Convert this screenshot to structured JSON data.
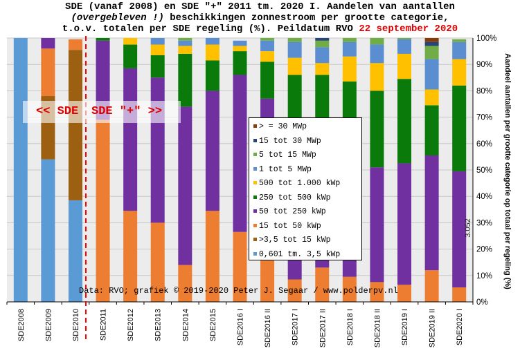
{
  "title": {
    "line1": "SDE (vanaf 2008) en SDE \"+\" 2011 tm. 2020 I. Aandelen van aantallen",
    "line2_italic": "(overgebleven !)",
    "line2_rest": " beschikkingen  zonnestroom per grootte categorie,",
    "line3_main": "t.o.v. totalen per SDE regeling (%). Peildatum RVO ",
    "line3_date": "22 september 2020"
  },
  "annotation": {
    "sde_left": "<< SDE",
    "sde_right": "SDE \"+\" >>",
    "source": "Data: RVO; grafiek © 2019-2020 Peter J. Segaar / www.polderpv.nl",
    "in_bar_value": "3.052"
  },
  "colors": {
    "divider_line": "#ff0000",
    "title_highlight": "#e00000"
  },
  "chart_data": {
    "type": "bar",
    "stacked": true,
    "ylabel": "Aandeel aantallen per grootte categorie op totaal per regeling (%)",
    "ylim": [
      0,
      100
    ],
    "y_ticks": [
      "0%",
      "10%",
      "20%",
      "30%",
      "40%",
      "50%",
      "60%",
      "70%",
      "80%",
      "90%",
      "100%"
    ],
    "y_axis_side": "right",
    "grid": true,
    "legend_position": "center",
    "categories": [
      "SDE2008",
      "SDE2009",
      "SDE2010",
      "SDE2011",
      "SDE2012",
      "SDE2013",
      "SDE2014",
      "SDE2015",
      "SDE2016 I",
      "SDE2016 II",
      "SDE2017 I",
      "SDE2017 II",
      "SDE2018 I",
      "SDE2018 II",
      "SDE2019 I",
      "SDE2019 II",
      "SDE2020 I"
    ],
    "series": [
      {
        "name": "0,601 tm. 3,5 kWp",
        "color": "#5b9bd5",
        "values": [
          100,
          54,
          38.5,
          0,
          0,
          0,
          0,
          0,
          0,
          0,
          0,
          0,
          0,
          0,
          0,
          0,
          0
        ]
      },
      {
        "name": ">3,5 tot 15 kWp",
        "color": "#9c6010",
        "values": [
          0,
          24,
          57,
          0,
          0,
          0,
          0,
          0,
          0,
          0,
          0,
          0,
          0,
          0,
          0,
          0,
          0
        ]
      },
      {
        "name": "15 tot 50 kWp",
        "color": "#ed7d31",
        "values": [
          0,
          18,
          4,
          69,
          34.5,
          30,
          14,
          34.5,
          26.5,
          20,
          8.5,
          13,
          9.5,
          7.5,
          6.5,
          12,
          5.5
        ]
      },
      {
        "name": "50 tot 250 kWp",
        "color": "#7030a0",
        "values": [
          0,
          4,
          0,
          30,
          54,
          55,
          60,
          45.5,
          59.5,
          57,
          49.5,
          45,
          48,
          43.5,
          46,
          43.5,
          44
        ]
      },
      {
        "name": "250 tot 500 kWp",
        "color": "#0a7a0a",
        "values": [
          0,
          0,
          0,
          1,
          9,
          8.5,
          20,
          11.5,
          9,
          14,
          28,
          28,
          26,
          29,
          32,
          19,
          32.5
        ]
      },
      {
        "name": "500 tot 1.000 kWp",
        "color": "#ffc000",
        "values": [
          0,
          0,
          0,
          0,
          2.5,
          4,
          3,
          6,
          2,
          4,
          6.5,
          4.5,
          9.5,
          10.5,
          9.5,
          6,
          10
        ]
      },
      {
        "name": "1 tot 5 MWp",
        "color": "#5a8ed0",
        "values": [
          0,
          0,
          0,
          0,
          0,
          2.5,
          2,
          2.5,
          2,
          4,
          6,
          6,
          5.5,
          7,
          5.5,
          11.5,
          6.5
        ]
      },
      {
        "name": "5 tot 15 MWp",
        "color": "#70ad47",
        "values": [
          0,
          0,
          0,
          0,
          0,
          0,
          1,
          0,
          0,
          1,
          1.5,
          2.5,
          1.5,
          2.5,
          0.5,
          5,
          1
        ]
      },
      {
        "name": "15 tot 30 MWp",
        "color": "#264478",
        "values": [
          0,
          0,
          0,
          0,
          0,
          0,
          0,
          0,
          0,
          0,
          0,
          1,
          0,
          0,
          0,
          1.5,
          0
        ]
      },
      {
        "name": "> = 30 MWp",
        "color": "#843c0c",
        "values": [
          0,
          0,
          0,
          0,
          0,
          0,
          0,
          0,
          0,
          0,
          0,
          0,
          0,
          0,
          0,
          1.5,
          0
        ]
      }
    ]
  }
}
